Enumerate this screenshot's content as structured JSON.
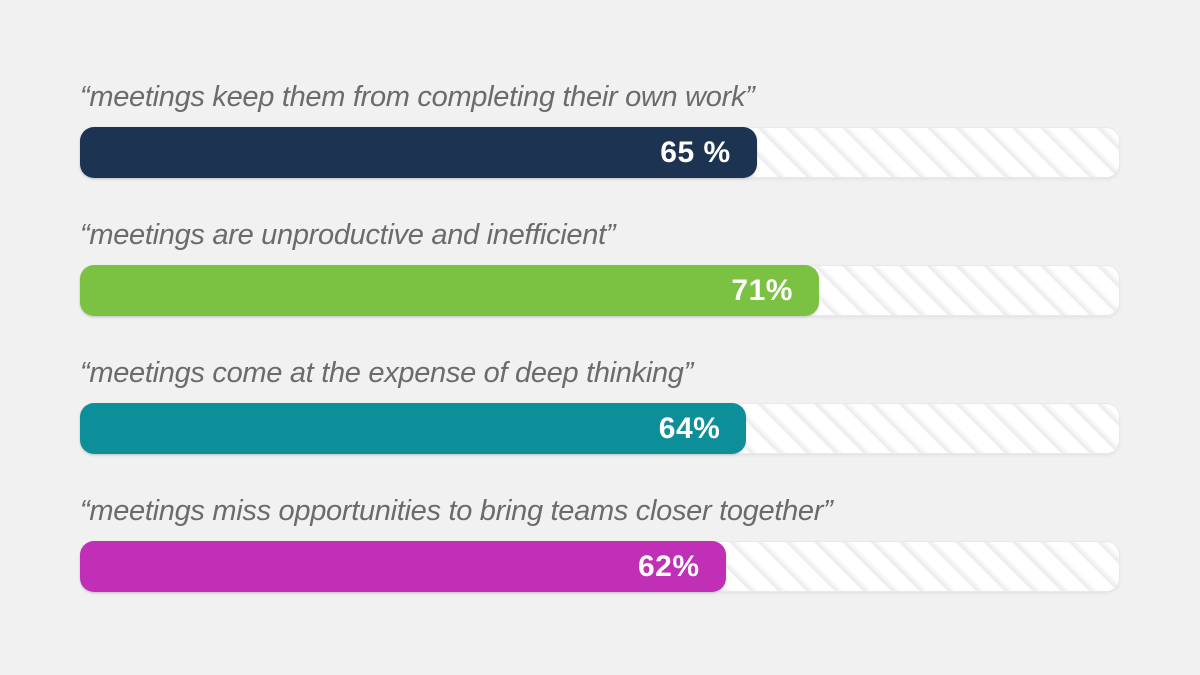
{
  "page": {
    "background_color": "#f1f1f2"
  },
  "chart_data": {
    "type": "bar",
    "orientation": "horizontal",
    "title": "",
    "xlabel": "",
    "ylabel": "",
    "xlim": [
      0,
      100
    ],
    "unit": "percent",
    "grid": false,
    "legend": false,
    "categories": [
      "“meetings keep them from completing their own work”",
      "“meetings are unproductive and inefficient”",
      "“meetings come at the expense of deep thinking”",
      "“meetings miss opportunities to bring teams closer together”"
    ],
    "values": [
      65,
      71,
      64,
      62
    ],
    "value_labels": [
      "65 %",
      "71%",
      "64%",
      "62%"
    ],
    "bar_colors": [
      "#1c3452",
      "#7bc142",
      "#0d8f9a",
      "#c02fb6"
    ],
    "track_color": "#fdfdfe",
    "track_stripe_color": "#ebebee",
    "label_color": "#6b6b6e",
    "value_label_color": "#ffffff"
  }
}
